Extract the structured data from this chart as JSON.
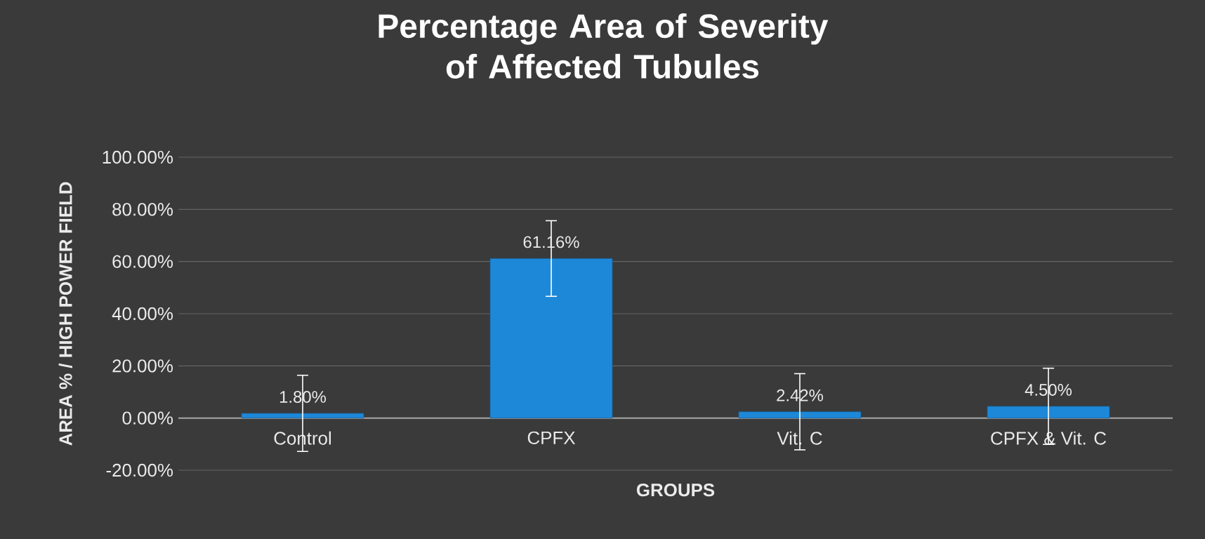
{
  "chart_data": {
    "type": "bar",
    "title": "Percentage Area of Severity of Affected Tubules",
    "xlabel": "GROUPS",
    "ylabel": "AREA %  / HIGH POWER FIELD",
    "categories": [
      "Control",
      "CPFX",
      "Vit. C",
      "CPFX & Vit. C"
    ],
    "values": [
      1.8,
      61.16,
      2.42,
      4.5
    ],
    "value_labels": [
      "1.80%",
      "61.16%",
      "2.42%",
      "4.50%"
    ],
    "errors": [
      14.6,
      14.5,
      14.6,
      14.6
    ],
    "color": "#1e88d8",
    "ylim": [
      -20,
      100
    ],
    "yticks": [
      {
        "value": -20,
        "label": "-20.00%"
      },
      {
        "value": 0,
        "label": "0.00%"
      },
      {
        "value": 20,
        "label": "20.00%"
      },
      {
        "value": 40,
        "label": "40.00%"
      },
      {
        "value": 60,
        "label": "60.00%"
      },
      {
        "value": 80,
        "label": "80.00%"
      },
      {
        "value": 100,
        "label": "100.00%"
      }
    ],
    "grid": "y"
  }
}
